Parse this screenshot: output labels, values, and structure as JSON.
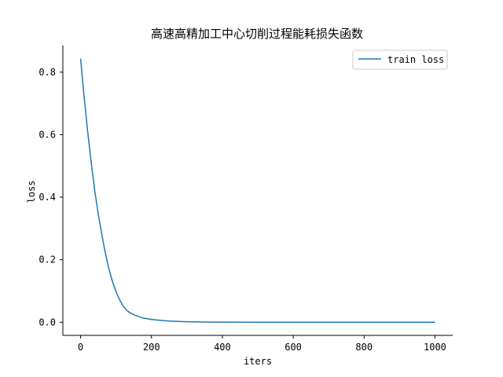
{
  "chart_data": {
    "type": "line",
    "title": "高速高精加工中心切削过程能耗损失函数",
    "xlabel": "iters",
    "ylabel": "loss",
    "xlim": [
      -50,
      1050
    ],
    "ylim": [
      -0.042,
      0.885
    ],
    "xticks": [
      0,
      200,
      400,
      600,
      800,
      1000
    ],
    "xtick_labels": [
      "0",
      "200",
      "400",
      "600",
      "800",
      "1000"
    ],
    "yticks": [
      0.0,
      0.2,
      0.4,
      0.6,
      0.8
    ],
    "ytick_labels": [
      "0.0",
      "0.2",
      "0.4",
      "0.6",
      "0.8"
    ],
    "grid": false,
    "legend_position": "top-right",
    "series": [
      {
        "name": "train loss",
        "color": "#1f77b4",
        "x": [
          0,
          10,
          20,
          30,
          40,
          50,
          60,
          70,
          80,
          90,
          100,
          110,
          120,
          130,
          140,
          150,
          175,
          200,
          225,
          250,
          275,
          300,
          350,
          400,
          500,
          600,
          700,
          800,
          900,
          1000
        ],
        "y": [
          0.843,
          0.72,
          0.61,
          0.51,
          0.42,
          0.345,
          0.28,
          0.22,
          0.17,
          0.13,
          0.098,
          0.072,
          0.052,
          0.038,
          0.03,
          0.024,
          0.014,
          0.009,
          0.006,
          0.004,
          0.0025,
          0.0015,
          0.0008,
          0.0004,
          0.0002,
          0.0001,
          0.0001,
          0.0,
          0.0,
          0.0
        ]
      }
    ]
  }
}
